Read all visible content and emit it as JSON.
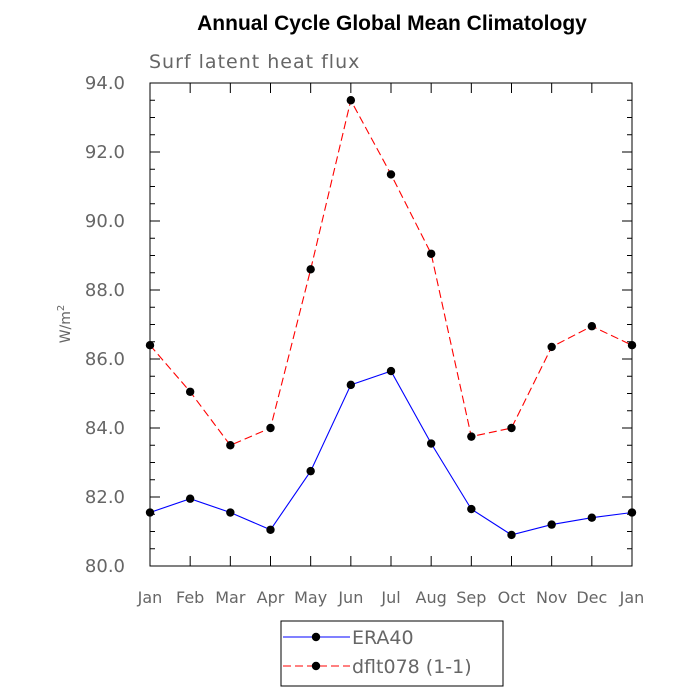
{
  "chart_data": {
    "type": "line",
    "title": "Annual Cycle Global Mean Climatology",
    "subtitle": "Surf latent heat flux",
    "ylabel": "W/m",
    "ylabel_sup": "2",
    "xlabel": "",
    "categories": [
      "Jan",
      "Feb",
      "Mar",
      "Apr",
      "May",
      "Jun",
      "Jul",
      "Aug",
      "Sep",
      "Oct",
      "Nov",
      "Dec",
      "Jan"
    ],
    "ylim": [
      80.0,
      94.0
    ],
    "yticks": [
      "80.0",
      "82.0",
      "84.0",
      "86.0",
      "88.0",
      "90.0",
      "92.0",
      "94.0"
    ],
    "grid": false,
    "legend_position": "bottom",
    "series": [
      {
        "name": "ERA40",
        "color": "#0000ff",
        "dash": "solid",
        "values": [
          81.55,
          81.95,
          81.55,
          81.05,
          82.75,
          85.25,
          85.65,
          83.55,
          81.65,
          80.9,
          81.2,
          81.4,
          81.55
        ]
      },
      {
        "name": "dflt078 (1-1)",
        "color": "#ff0000",
        "dash": "dashed",
        "values": [
          86.4,
          85.05,
          83.5,
          84.0,
          88.6,
          93.5,
          91.35,
          89.05,
          83.75,
          84.0,
          86.35,
          86.95,
          86.4
        ]
      }
    ]
  }
}
